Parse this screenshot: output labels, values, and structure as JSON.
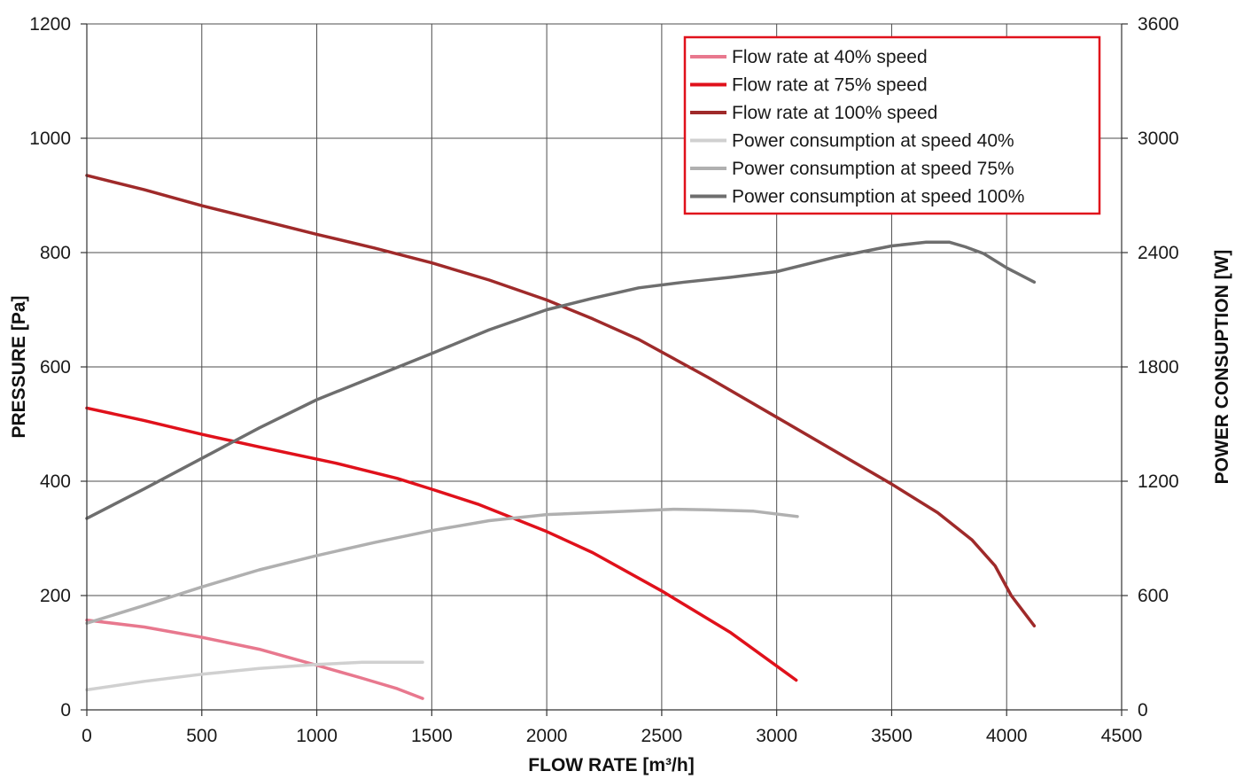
{
  "chart_data": {
    "type": "line",
    "xlabel": "FLOW RATE [m³/h]",
    "ylabel_left": "PRESSURE [Pa]",
    "ylabel_right": "POWER CONSUPTION [W]",
    "xlim": [
      0,
      4500
    ],
    "ylim_left": [
      0,
      1200
    ],
    "ylim_right": [
      0,
      3600
    ],
    "x_ticks": [
      0,
      500,
      1000,
      1500,
      2000,
      2500,
      3000,
      3500,
      4000,
      4500
    ],
    "y_left_ticks": [
      0,
      200,
      400,
      600,
      800,
      1000,
      1200
    ],
    "y_right_ticks": [
      0,
      600,
      1200,
      1800,
      2400,
      3000,
      3600
    ],
    "grid": true,
    "legend_position": "top-right",
    "series": [
      {
        "name": "Flow rate at 40% speed",
        "axis": "left",
        "color": "#e8788e",
        "points": [
          [
            0,
            157
          ],
          [
            250,
            145
          ],
          [
            500,
            127
          ],
          [
            750,
            106
          ],
          [
            1000,
            78
          ],
          [
            1200,
            55
          ],
          [
            1350,
            37
          ],
          [
            1460,
            20
          ]
        ]
      },
      {
        "name": "Flow rate at 75% speed",
        "axis": "left",
        "color": "#e0111b",
        "points": [
          [
            0,
            528
          ],
          [
            250,
            506
          ],
          [
            500,
            482
          ],
          [
            750,
            460
          ],
          [
            1080,
            432
          ],
          [
            1350,
            405
          ],
          [
            1500,
            386
          ],
          [
            1700,
            360
          ],
          [
            2000,
            312
          ],
          [
            2200,
            275
          ],
          [
            2500,
            208
          ],
          [
            2800,
            135
          ],
          [
            3085,
            52
          ]
        ]
      },
      {
        "name": "Flow rate at 100% speed",
        "axis": "left",
        "color": "#9f2a2a",
        "points": [
          [
            0,
            935
          ],
          [
            250,
            910
          ],
          [
            500,
            882
          ],
          [
            750,
            857
          ],
          [
            1000,
            832
          ],
          [
            1250,
            808
          ],
          [
            1500,
            782
          ],
          [
            1750,
            752
          ],
          [
            2000,
            717
          ],
          [
            2200,
            684
          ],
          [
            2400,
            648
          ],
          [
            2700,
            582
          ],
          [
            3000,
            512
          ],
          [
            3500,
            395
          ],
          [
            3700,
            345
          ],
          [
            3850,
            297
          ],
          [
            3950,
            252
          ],
          [
            4020,
            200
          ],
          [
            4120,
            147
          ]
        ]
      },
      {
        "name": "Power consumption at speed 40%",
        "axis": "right",
        "color": "#d0d0d0",
        "points": [
          [
            0,
            105
          ],
          [
            250,
            150
          ],
          [
            500,
            187
          ],
          [
            750,
            217
          ],
          [
            1000,
            238
          ],
          [
            1200,
            250
          ],
          [
            1460,
            250
          ]
        ]
      },
      {
        "name": "Power consumption at speed 75%",
        "axis": "right",
        "color": "#b0b0b0",
        "points": [
          [
            0,
            455
          ],
          [
            250,
            548
          ],
          [
            500,
            645
          ],
          [
            750,
            735
          ],
          [
            1000,
            810
          ],
          [
            1250,
            878
          ],
          [
            1500,
            941
          ],
          [
            1750,
            993
          ],
          [
            2000,
            1025
          ],
          [
            2300,
            1040
          ],
          [
            2550,
            1053
          ],
          [
            2700,
            1050
          ],
          [
            2900,
            1043
          ],
          [
            3090,
            1015
          ]
        ]
      },
      {
        "name": "Power consumption at speed 100%",
        "axis": "right",
        "color": "#6e6e6e",
        "points": [
          [
            0,
            1005
          ],
          [
            250,
            1160
          ],
          [
            500,
            1320
          ],
          [
            750,
            1480
          ],
          [
            1000,
            1628
          ],
          [
            1200,
            1725
          ],
          [
            1500,
            1870
          ],
          [
            1750,
            1995
          ],
          [
            2000,
            2100
          ],
          [
            2200,
            2160
          ],
          [
            2400,
            2215
          ],
          [
            2600,
            2245
          ],
          [
            2800,
            2270
          ],
          [
            3000,
            2300
          ],
          [
            3250,
            2375
          ],
          [
            3500,
            2435
          ],
          [
            3650,
            2455
          ],
          [
            3750,
            2455
          ],
          [
            3820,
            2430
          ],
          [
            3900,
            2395
          ],
          [
            4000,
            2320
          ],
          [
            4120,
            2245
          ]
        ]
      }
    ]
  }
}
